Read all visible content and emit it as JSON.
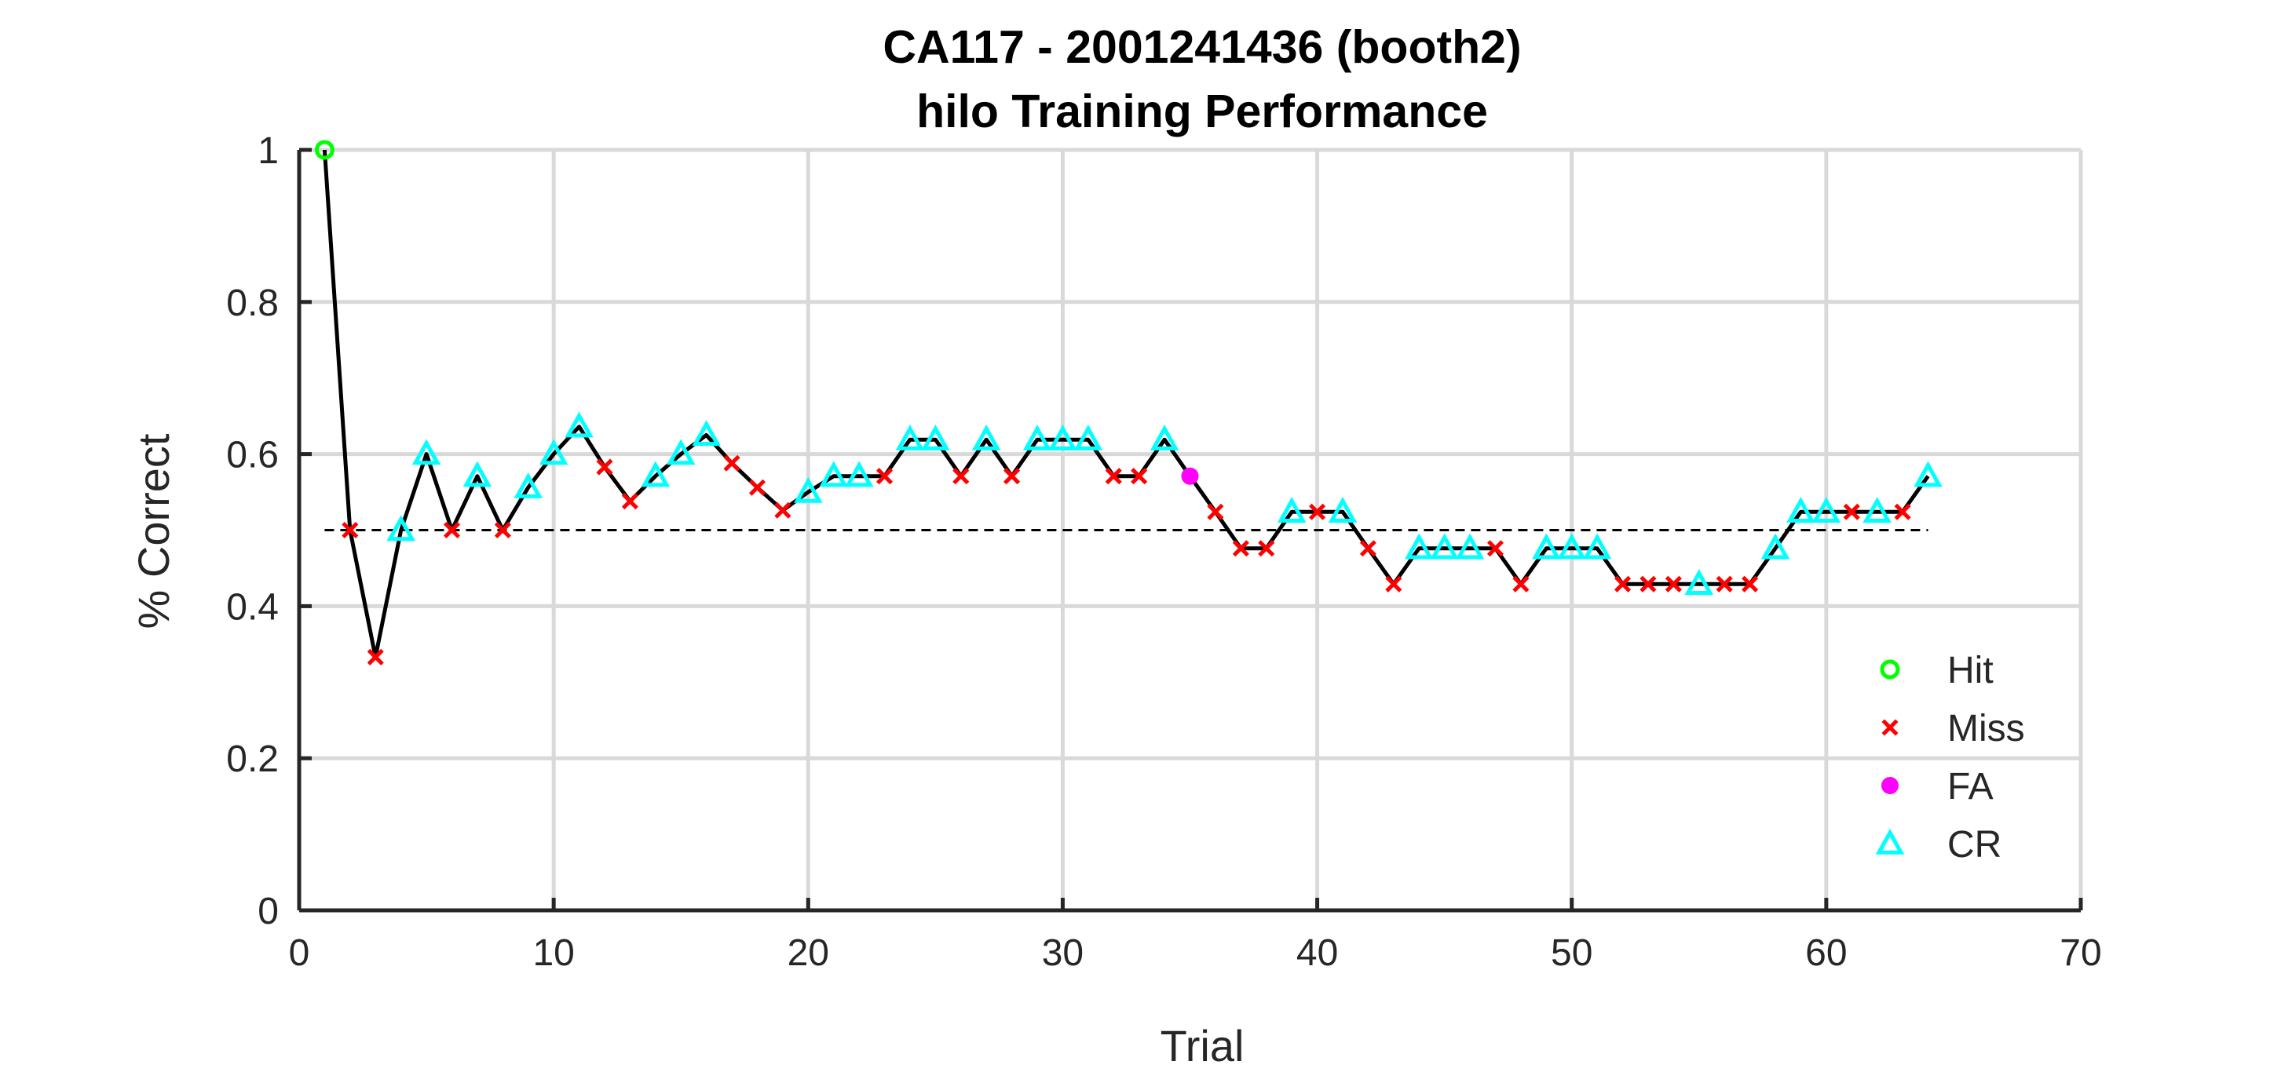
{
  "chart_data": {
    "type": "line",
    "title_lines": [
      "CA117 - 2001241436 (booth2)",
      "hilo Training Performance"
    ],
    "xlabel": "Trial",
    "ylabel": "% Correct",
    "xlim": [
      0,
      70
    ],
    "ylim": [
      0,
      1
    ],
    "xticks": [
      "0",
      "10",
      "20",
      "30",
      "40",
      "50",
      "60",
      "70"
    ],
    "yticks": [
      "0",
      "0.2",
      "0.4",
      "0.6",
      "0.8",
      "1"
    ],
    "grid": true,
    "legend_position": "bottom-right",
    "reference_line": {
      "y": 0.5,
      "style": "dashed",
      "x": [
        1,
        64
      ]
    },
    "colors": {
      "line": "#000000",
      "Hit": "#00ff00",
      "Miss": "#ff0000",
      "FA": "#ff00ff",
      "CR": "#00ffff",
      "grid": "#d9d9d9",
      "axis": "#262626"
    },
    "legend": [
      {
        "name": "Hit",
        "marker": "circle-open"
      },
      {
        "name": "Miss",
        "marker": "x"
      },
      {
        "name": "FA",
        "marker": "circle-filled"
      },
      {
        "name": "CR",
        "marker": "triangle-open"
      }
    ],
    "series": [
      {
        "name": "% Correct",
        "x": [
          1,
          2,
          3,
          4,
          5,
          6,
          7,
          8,
          9,
          10,
          11,
          12,
          13,
          14,
          15,
          16,
          17,
          18,
          19,
          20,
          21,
          22,
          23,
          24,
          25,
          26,
          27,
          28,
          29,
          30,
          31,
          32,
          33,
          34,
          35,
          36,
          37,
          38,
          39,
          40,
          41,
          42,
          43,
          44,
          45,
          46,
          47,
          48,
          49,
          50,
          51,
          52,
          53,
          54,
          55,
          56,
          57,
          58,
          59,
          60,
          61,
          62,
          63,
          64
        ],
        "y": [
          1.0,
          0.5,
          0.333,
          0.5,
          0.6,
          0.5,
          0.571,
          0.5,
          0.556,
          0.6,
          0.636,
          0.583,
          0.538,
          0.571,
          0.6,
          0.625,
          0.588,
          0.556,
          0.526,
          0.55,
          0.571,
          0.571,
          0.571,
          0.619,
          0.619,
          0.571,
          0.619,
          0.571,
          0.619,
          0.619,
          0.619,
          0.571,
          0.571,
          0.619,
          0.571,
          0.524,
          0.476,
          0.476,
          0.524,
          0.524,
          0.524,
          0.476,
          0.429,
          0.476,
          0.476,
          0.476,
          0.476,
          0.429,
          0.476,
          0.476,
          0.476,
          0.429,
          0.429,
          0.429,
          0.429,
          0.429,
          0.429,
          0.476,
          0.524,
          0.524,
          0.524,
          0.524,
          0.524,
          0.571
        ],
        "outcome": [
          "Hit",
          "Miss",
          "Miss",
          "CR",
          "CR",
          "Miss",
          "CR",
          "Miss",
          "CR",
          "CR",
          "CR",
          "Miss",
          "Miss",
          "CR",
          "CR",
          "CR",
          "Miss",
          "Miss",
          "Miss",
          "CR",
          "CR",
          "CR",
          "Miss",
          "CR",
          "CR",
          "Miss",
          "CR",
          "Miss",
          "CR",
          "CR",
          "CR",
          "Miss",
          "Miss",
          "CR",
          "FA",
          "Miss",
          "Miss",
          "Miss",
          "CR",
          "Miss",
          "CR",
          "Miss",
          "Miss",
          "CR",
          "CR",
          "CR",
          "Miss",
          "Miss",
          "CR",
          "CR",
          "CR",
          "Miss",
          "Miss",
          "Miss",
          "CR",
          "Miss",
          "Miss",
          "CR",
          "CR",
          "CR",
          "Miss",
          "CR",
          "Miss",
          "CR"
        ]
      }
    ]
  }
}
